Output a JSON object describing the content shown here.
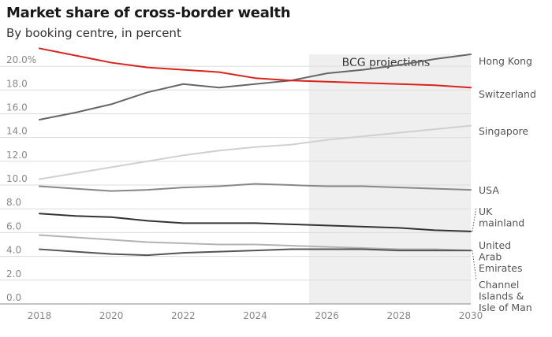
{
  "chart_data": {
    "type": "line",
    "title": "Market share of cross-border wealth",
    "subtitle": "By booking centre, in percent",
    "xlabel": "",
    "ylabel": "",
    "xlim": [
      2018,
      2030
    ],
    "ylim": [
      0,
      21
    ],
    "x": [
      2018,
      2019,
      2020,
      2021,
      2022,
      2023,
      2024,
      2025,
      2026,
      2027,
      2028,
      2029,
      2030
    ],
    "x_ticks": [
      "2018",
      "2020",
      "2022",
      "2024",
      "2026",
      "2028",
      "2030"
    ],
    "y_ticks": [
      "0.0",
      "2.0",
      "4.0",
      "6.0",
      "8.0",
      "10.0",
      "12.0",
      "14.0",
      "16.0",
      "18.0",
      "20.0%"
    ],
    "grid": true,
    "shaded_region": {
      "x_range": [
        2025.5,
        2030
      ],
      "label": "BCG projections",
      "color": "#efefef"
    },
    "series": [
      {
        "name": "Hong Kong",
        "color": "#666666",
        "values": [
          15.5,
          16.1,
          16.8,
          17.8,
          18.5,
          18.2,
          18.5,
          18.8,
          19.4,
          19.7,
          20.1,
          20.6,
          21.0
        ]
      },
      {
        "name": "Switzerland",
        "color": "#d9231c",
        "values": [
          21.5,
          20.9,
          20.3,
          19.9,
          19.7,
          19.5,
          19.0,
          18.8,
          18.7,
          18.6,
          18.5,
          18.4,
          18.2
        ]
      },
      {
        "name": "Singapore",
        "color": "#d0d0d0",
        "values": [
          10.5,
          11.0,
          11.5,
          12.0,
          12.5,
          12.9,
          13.2,
          13.4,
          13.8,
          14.1,
          14.4,
          14.7,
          15.0
        ]
      },
      {
        "name": "USA",
        "color": "#888888",
        "values": [
          9.9,
          9.7,
          9.5,
          9.6,
          9.8,
          9.9,
          10.1,
          10.0,
          9.9,
          9.9,
          9.8,
          9.7,
          9.6
        ]
      },
      {
        "name": "UK mainland",
        "color": "#333333",
        "values": [
          7.6,
          7.4,
          7.3,
          7.0,
          6.8,
          6.8,
          6.8,
          6.7,
          6.6,
          6.5,
          6.4,
          6.2,
          6.1
        ]
      },
      {
        "name": "United Arab Emirates",
        "color": "#b3b3b3",
        "values": [
          5.8,
          5.6,
          5.4,
          5.2,
          5.1,
          5.0,
          5.0,
          4.9,
          4.8,
          4.7,
          4.6,
          4.6,
          4.5
        ]
      },
      {
        "name": "Channel Islands & Isle of Man",
        "color": "#555555",
        "values": [
          4.6,
          4.4,
          4.2,
          4.1,
          4.3,
          4.4,
          4.5,
          4.6,
          4.6,
          4.6,
          4.5,
          4.5,
          4.5
        ]
      }
    ],
    "legend_labels": [
      {
        "series": "Hong Kong",
        "lines": [
          "Hong Kong"
        ]
      },
      {
        "series": "Switzerland",
        "lines": [
          "Switzerland"
        ]
      },
      {
        "series": "Singapore",
        "lines": [
          "Singapore"
        ]
      },
      {
        "series": "USA",
        "lines": [
          "USA"
        ]
      },
      {
        "series": "UK mainland",
        "lines": [
          "UK",
          "mainland"
        ]
      },
      {
        "series": "United Arab Emirates",
        "lines": [
          "United",
          "Arab",
          "Emirates"
        ]
      },
      {
        "series": "Channel Islands & Isle of Man",
        "lines": [
          "Channel",
          "Islands &",
          "Isle of Man"
        ]
      }
    ]
  }
}
